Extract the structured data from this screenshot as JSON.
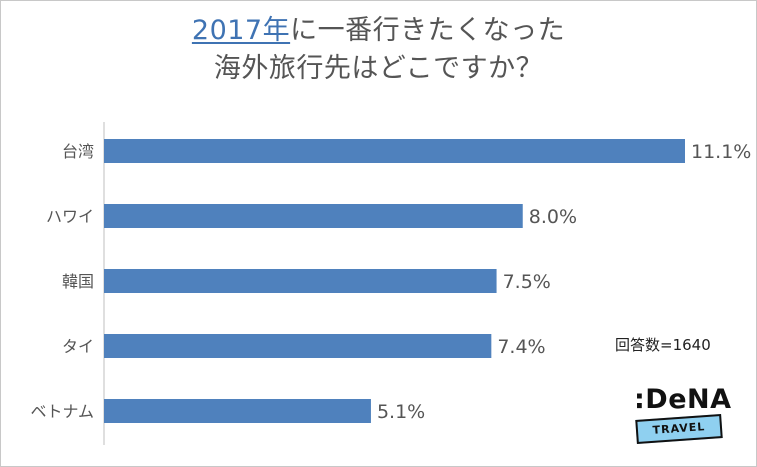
{
  "title": {
    "line1_highlight": "2017年",
    "line1_rest": "に一番行きたくなった",
    "line2": "海外旅行先はどこですか？"
  },
  "note": "回答数=1640",
  "logo": {
    "wordmark": ":DeNA",
    "ribbon": "TRAVEL"
  },
  "colors": {
    "bar": "#4f81bd",
    "title_accent": "#3f73b3",
    "text": "#555555"
  },
  "chart_data": {
    "type": "bar",
    "orientation": "horizontal",
    "categories": [
      "台湾",
      "ハワイ",
      "韓国",
      "タイ",
      "ベトナム"
    ],
    "values": [
      11.1,
      8.0,
      7.5,
      7.4,
      5.1
    ],
    "value_labels": [
      "11.1%",
      "8.0%",
      "7.5%",
      "7.4%",
      "5.1%"
    ],
    "unit": "%",
    "title": "2017年に一番行きたくなった海外旅行先はどこですか？",
    "xlim": [
      0,
      11.1
    ],
    "grid": false,
    "legend": "none"
  }
}
